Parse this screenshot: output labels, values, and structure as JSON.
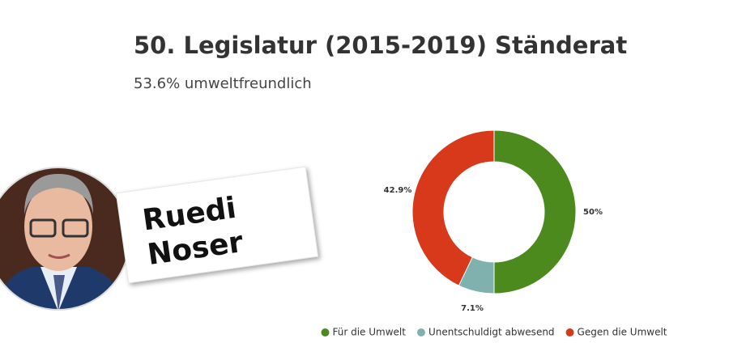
{
  "chart_data": {
    "type": "donut",
    "title": "50. Legislatur (2015-2019) Ständerat",
    "subtitle": "53.6% umweltfreundlich",
    "categories": [
      "Für die Umwelt",
      "Unentschuldigt abwesend",
      "Gegen die Umwelt"
    ],
    "values": [
      50,
      7.1,
      42.9
    ],
    "value_labels": [
      "50%",
      "7.1%",
      "42.9%"
    ],
    "colors": [
      "#4c8a1e",
      "#7fb2ae",
      "#d9391b"
    ],
    "legend": "bottom"
  },
  "overlay": {
    "name": [
      "Ruedi",
      "Noser"
    ]
  }
}
